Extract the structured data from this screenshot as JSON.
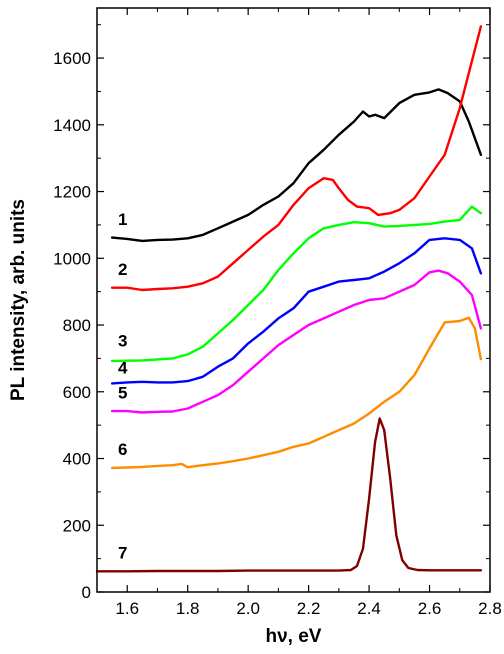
{
  "chart_data": {
    "type": "line",
    "xlabel": "hν, eV",
    "ylabel": "PL intensity, arb. units",
    "xlim": [
      1.5,
      2.8
    ],
    "ylim": [
      0,
      1750
    ],
    "x_ticks": [
      1.6,
      1.8,
      2.0,
      2.2,
      2.4,
      2.6,
      2.8
    ],
    "x_tick_labels": [
      "1.6",
      "1.8",
      "2.0",
      "2.2",
      "2.4",
      "2.6",
      "2.8"
    ],
    "y_ticks": [
      0,
      200,
      400,
      600,
      800,
      1000,
      1200,
      1400,
      1600
    ],
    "y_tick_labels": [
      "0",
      "200",
      "400",
      "600",
      "800",
      "1000",
      "1200",
      "1400",
      "1600"
    ],
    "grid": false,
    "legend": "none",
    "series": [
      {
        "name": "1",
        "color": "#000000",
        "points": [
          [
            1.55,
            1062
          ],
          [
            1.6,
            1058
          ],
          [
            1.65,
            1052
          ],
          [
            1.7,
            1055
          ],
          [
            1.75,
            1056
          ],
          [
            1.8,
            1060
          ],
          [
            1.85,
            1070
          ],
          [
            1.9,
            1090
          ],
          [
            1.95,
            1110
          ],
          [
            2.0,
            1130
          ],
          [
            2.05,
            1160
          ],
          [
            2.1,
            1185
          ],
          [
            2.15,
            1225
          ],
          [
            2.2,
            1285
          ],
          [
            2.25,
            1325
          ],
          [
            2.3,
            1370
          ],
          [
            2.35,
            1410
          ],
          [
            2.38,
            1440
          ],
          [
            2.4,
            1425
          ],
          [
            2.42,
            1430
          ],
          [
            2.45,
            1420
          ],
          [
            2.5,
            1465
          ],
          [
            2.55,
            1490
          ],
          [
            2.6,
            1497
          ],
          [
            2.63,
            1506
          ],
          [
            2.66,
            1495
          ],
          [
            2.7,
            1470
          ],
          [
            2.73,
            1410
          ],
          [
            2.77,
            1310
          ]
        ]
      },
      {
        "name": "2",
        "color": "#ff0000",
        "points": [
          [
            1.55,
            912
          ],
          [
            1.6,
            912
          ],
          [
            1.65,
            905
          ],
          [
            1.7,
            908
          ],
          [
            1.75,
            910
          ],
          [
            1.8,
            915
          ],
          [
            1.85,
            925
          ],
          [
            1.9,
            945
          ],
          [
            1.95,
            985
          ],
          [
            2.0,
            1025
          ],
          [
            2.05,
            1065
          ],
          [
            2.1,
            1100
          ],
          [
            2.15,
            1160
          ],
          [
            2.2,
            1210
          ],
          [
            2.25,
            1240
          ],
          [
            2.28,
            1235
          ],
          [
            2.3,
            1210
          ],
          [
            2.33,
            1175
          ],
          [
            2.36,
            1155
          ],
          [
            2.4,
            1150
          ],
          [
            2.43,
            1130
          ],
          [
            2.47,
            1135
          ],
          [
            2.5,
            1145
          ],
          [
            2.55,
            1180
          ],
          [
            2.6,
            1245
          ],
          [
            2.65,
            1310
          ],
          [
            2.7,
            1450
          ],
          [
            2.73,
            1555
          ],
          [
            2.77,
            1695
          ]
        ]
      },
      {
        "name": "3",
        "color": "#00ff00",
        "points": [
          [
            1.55,
            692
          ],
          [
            1.6,
            693
          ],
          [
            1.65,
            694
          ],
          [
            1.7,
            697
          ],
          [
            1.75,
            700
          ],
          [
            1.8,
            712
          ],
          [
            1.85,
            735
          ],
          [
            1.9,
            775
          ],
          [
            1.95,
            815
          ],
          [
            2.0,
            860
          ],
          [
            2.05,
            905
          ],
          [
            2.1,
            965
          ],
          [
            2.15,
            1015
          ],
          [
            2.2,
            1060
          ],
          [
            2.25,
            1090
          ],
          [
            2.3,
            1100
          ],
          [
            2.35,
            1108
          ],
          [
            2.4,
            1105
          ],
          [
            2.45,
            1095
          ],
          [
            2.5,
            1097
          ],
          [
            2.55,
            1100
          ],
          [
            2.6,
            1103
          ],
          [
            2.65,
            1110
          ],
          [
            2.7,
            1115
          ],
          [
            2.74,
            1155
          ],
          [
            2.77,
            1135
          ]
        ]
      },
      {
        "name": "4",
        "color": "#0000ff",
        "points": [
          [
            1.55,
            625
          ],
          [
            1.6,
            628
          ],
          [
            1.65,
            630
          ],
          [
            1.7,
            628
          ],
          [
            1.75,
            628
          ],
          [
            1.8,
            632
          ],
          [
            1.85,
            645
          ],
          [
            1.9,
            675
          ],
          [
            1.95,
            700
          ],
          [
            2.0,
            745
          ],
          [
            2.05,
            780
          ],
          [
            2.1,
            820
          ],
          [
            2.15,
            850
          ],
          [
            2.2,
            900
          ],
          [
            2.25,
            915
          ],
          [
            2.3,
            930
          ],
          [
            2.35,
            935
          ],
          [
            2.4,
            940
          ],
          [
            2.45,
            960
          ],
          [
            2.5,
            985
          ],
          [
            2.55,
            1015
          ],
          [
            2.6,
            1055
          ],
          [
            2.65,
            1060
          ],
          [
            2.7,
            1055
          ],
          [
            2.74,
            1030
          ],
          [
            2.77,
            955
          ]
        ]
      },
      {
        "name": "5",
        "color": "#ff00ff",
        "points": [
          [
            1.55,
            542
          ],
          [
            1.6,
            542
          ],
          [
            1.65,
            538
          ],
          [
            1.7,
            540
          ],
          [
            1.75,
            541
          ],
          [
            1.8,
            550
          ],
          [
            1.85,
            570
          ],
          [
            1.9,
            590
          ],
          [
            1.95,
            620
          ],
          [
            2.0,
            660
          ],
          [
            2.05,
            700
          ],
          [
            2.1,
            740
          ],
          [
            2.15,
            770
          ],
          [
            2.2,
            800
          ],
          [
            2.25,
            820
          ],
          [
            2.3,
            840
          ],
          [
            2.35,
            860
          ],
          [
            2.4,
            875
          ],
          [
            2.45,
            880
          ],
          [
            2.5,
            900
          ],
          [
            2.55,
            920
          ],
          [
            2.6,
            958
          ],
          [
            2.63,
            963
          ],
          [
            2.66,
            955
          ],
          [
            2.7,
            930
          ],
          [
            2.74,
            890
          ],
          [
            2.77,
            790
          ]
        ]
      },
      {
        "name": "6",
        "color": "#ff8c00",
        "points": [
          [
            1.55,
            372
          ],
          [
            1.6,
            373
          ],
          [
            1.65,
            375
          ],
          [
            1.7,
            378
          ],
          [
            1.75,
            380
          ],
          [
            1.78,
            384
          ],
          [
            1.8,
            374
          ],
          [
            1.85,
            380
          ],
          [
            1.9,
            385
          ],
          [
            1.95,
            392
          ],
          [
            2.0,
            400
          ],
          [
            2.05,
            410
          ],
          [
            2.1,
            420
          ],
          [
            2.15,
            435
          ],
          [
            2.2,
            445
          ],
          [
            2.25,
            465
          ],
          [
            2.3,
            485
          ],
          [
            2.35,
            505
          ],
          [
            2.4,
            535
          ],
          [
            2.45,
            570
          ],
          [
            2.5,
            600
          ],
          [
            2.55,
            650
          ],
          [
            2.6,
            730
          ],
          [
            2.65,
            808
          ],
          [
            2.7,
            812
          ],
          [
            2.73,
            822
          ],
          [
            2.75,
            790
          ],
          [
            2.77,
            698
          ]
        ]
      },
      {
        "name": "7",
        "color": "#800000",
        "points": [
          [
            1.5,
            62
          ],
          [
            1.6,
            62
          ],
          [
            1.7,
            63
          ],
          [
            1.8,
            63
          ],
          [
            1.9,
            63
          ],
          [
            2.0,
            64
          ],
          [
            2.1,
            64
          ],
          [
            2.2,
            64
          ],
          [
            2.3,
            64
          ],
          [
            2.34,
            66
          ],
          [
            2.36,
            78
          ],
          [
            2.38,
            130
          ],
          [
            2.4,
            280
          ],
          [
            2.42,
            450
          ],
          [
            2.435,
            520
          ],
          [
            2.45,
            485
          ],
          [
            2.47,
            340
          ],
          [
            2.49,
            170
          ],
          [
            2.51,
            95
          ],
          [
            2.53,
            72
          ],
          [
            2.56,
            66
          ],
          [
            2.6,
            65
          ],
          [
            2.7,
            65
          ],
          [
            2.77,
            65
          ]
        ]
      }
    ],
    "curve_labels": [
      {
        "text": "1",
        "x": 1.585,
        "y": 1100
      },
      {
        "text": "2",
        "x": 1.585,
        "y": 950
      },
      {
        "text": "3",
        "x": 1.585,
        "y": 735
      },
      {
        "text": "4",
        "x": 1.585,
        "y": 655
      },
      {
        "text": "5",
        "x": 1.585,
        "y": 580
      },
      {
        "text": "6",
        "x": 1.585,
        "y": 410
      },
      {
        "text": "7",
        "x": 1.585,
        "y": 100
      }
    ]
  }
}
